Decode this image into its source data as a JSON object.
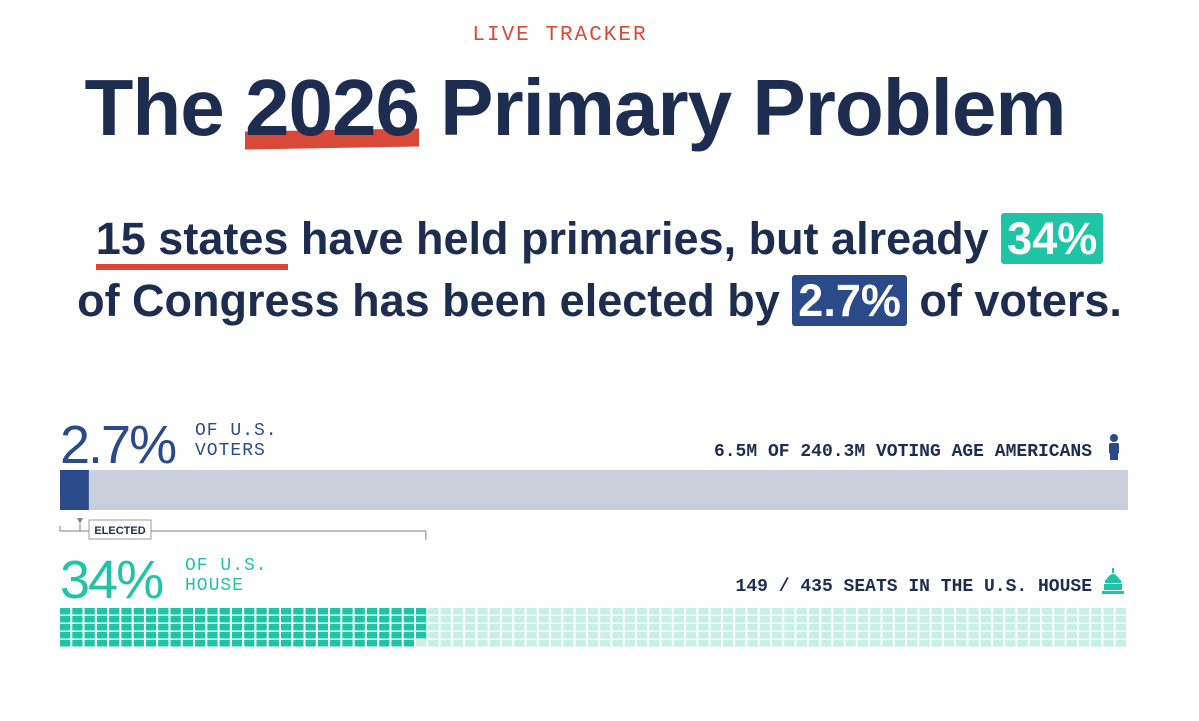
{
  "header": {
    "kicker": "LIVE TRACKER",
    "title_parts": [
      "The ",
      "2026",
      " Primary Problem"
    ]
  },
  "headline": {
    "parts": [
      "15 states",
      " have held primaries, but already ",
      " of Congress has been elected by ",
      " of voters."
    ]
  },
  "voters": {
    "value": 2.7,
    "label": "2.7%",
    "xlim": [
      0,
      100
    ],
    "caption_lines": [
      "OF U.S.",
      "VOTERS"
    ],
    "detail": "6.5M OF 240.3M VOTING AGE AMERICANS",
    "color": "#2b4a8a",
    "track_color": "#c9d0dc"
  },
  "marker": "ELECTED",
  "house": {
    "value": 34,
    "label": "34%",
    "caption_lines": [
      "OF U.S.",
      "HOUSE"
    ],
    "detail": "149 / 435 SEATS IN THE U.S. HOUSE",
    "seats_elected": 149,
    "seats_total": 435,
    "rows": 5,
    "color": "#1fc4a6",
    "empty_color": "#c6efe6"
  }
}
